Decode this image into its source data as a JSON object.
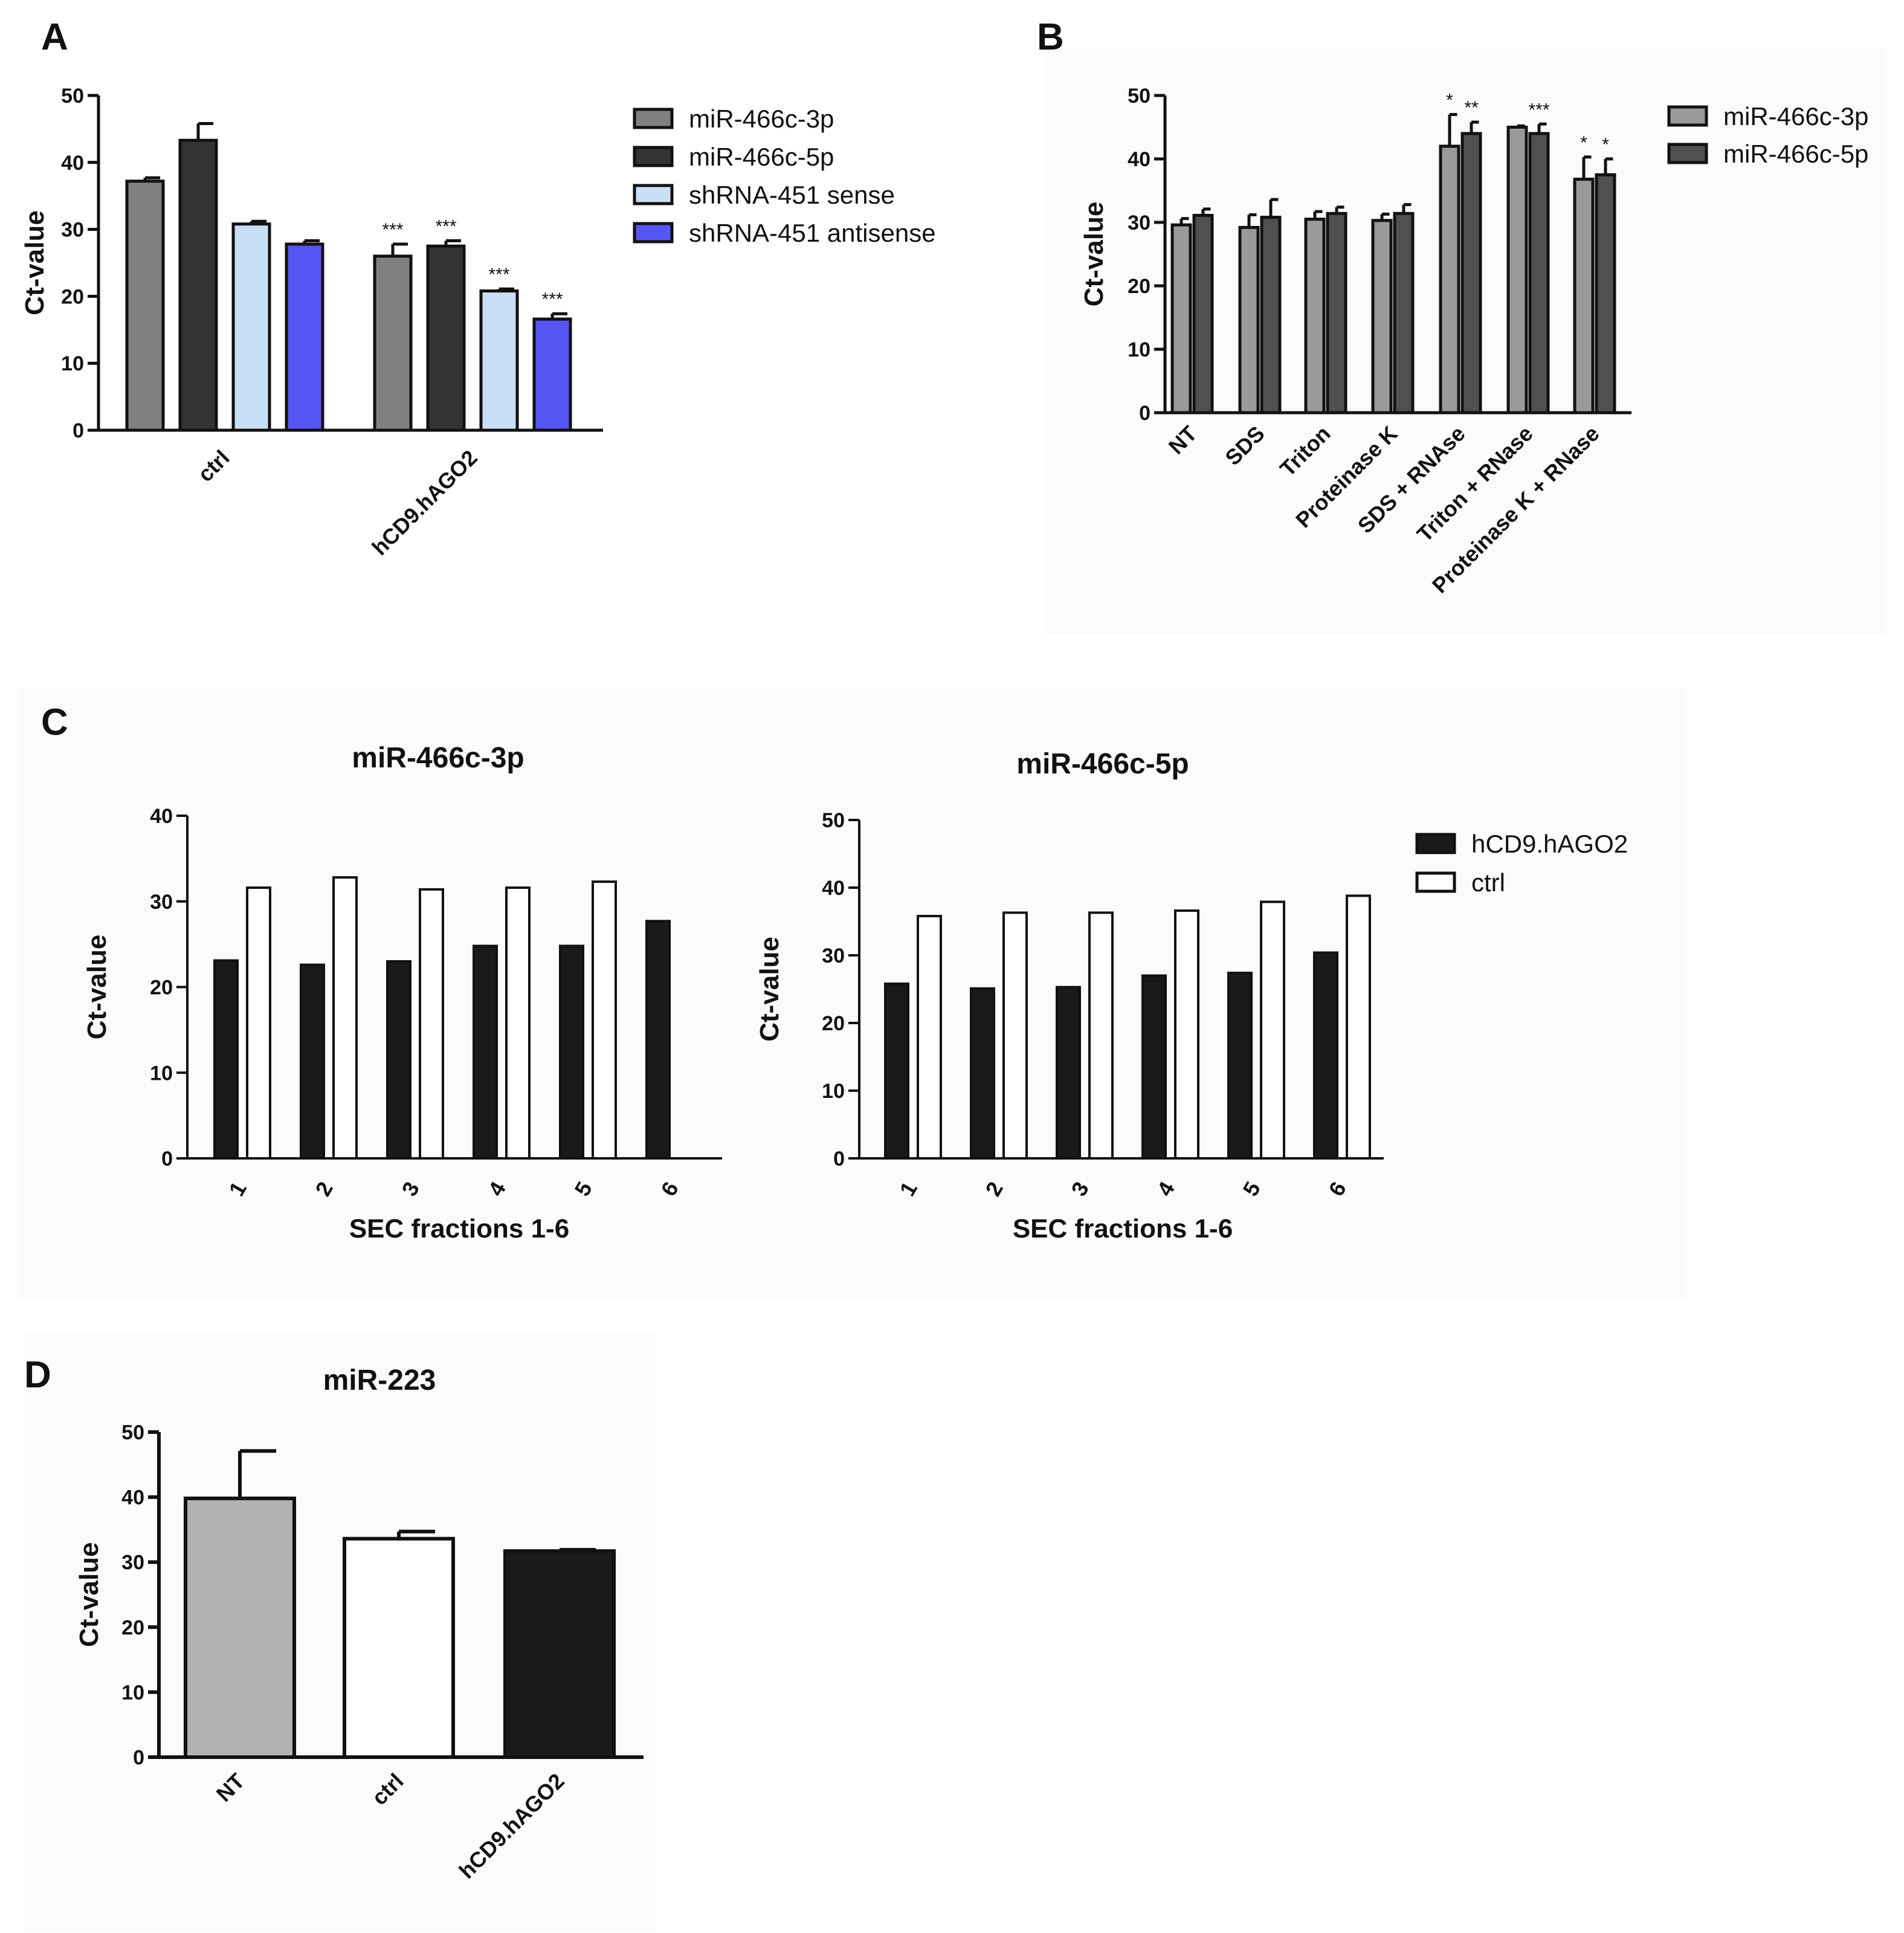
{
  "chart_data": [
    {
      "panel": "A",
      "type": "bar",
      "title": "",
      "xlabel": "",
      "ylabel": "Ct-value",
      "ylim": [
        0,
        50
      ],
      "yticks": [
        0,
        10,
        20,
        30,
        40,
        50
      ],
      "categories": [
        "ctrl",
        "hCD9.hAGO2"
      ],
      "series": [
        {
          "name": "miR-466c-3p",
          "color": "#808080",
          "values": [
            37.2,
            26.0
          ],
          "errors": [
            0.5,
            1.8
          ],
          "stars": [
            "",
            "***"
          ]
        },
        {
          "name": "miR-466c-5p",
          "color": "#333333",
          "values": [
            43.3,
            27.5
          ],
          "errors": [
            2.5,
            0.8
          ],
          "stars": [
            "",
            "***"
          ]
        },
        {
          "name": "shRNA-451 sense",
          "color": "#c9dff5",
          "values": [
            30.8,
            20.8
          ],
          "errors": [
            0.4,
            0.3
          ],
          "stars": [
            "",
            "***"
          ]
        },
        {
          "name": "shRNA-451 antisense",
          "color": "#5656f5",
          "values": [
            27.8,
            16.6
          ],
          "errors": [
            0.5,
            0.8
          ],
          "stars": [
            "",
            "***"
          ]
        }
      ]
    },
    {
      "panel": "B",
      "type": "bar",
      "title": "",
      "xlabel": "",
      "ylabel": "Ct-value",
      "ylim": [
        0,
        50
      ],
      "yticks": [
        0,
        10,
        20,
        30,
        40,
        50
      ],
      "categories": [
        "NT",
        "SDS",
        "Triton",
        "Proteinase K",
        "SDS + RNAse",
        "Triton + RNase",
        "Proteinase K + RNase"
      ],
      "series": [
        {
          "name": "miR-466c-3p",
          "color": "#9a9a9a",
          "values": [
            29.6,
            29.2,
            30.5,
            30.3,
            42.0,
            45.0,
            36.8
          ],
          "errors": [
            1.0,
            2.0,
            1.2,
            1.0,
            5.0,
            0.2,
            3.5
          ],
          "stars": [
            "",
            "",
            "",
            "",
            "*",
            "",
            "*"
          ]
        },
        {
          "name": "miR-466c-5p",
          "color": "#505050",
          "values": [
            31.1,
            30.8,
            31.4,
            31.4,
            44.0,
            44.0,
            37.5
          ],
          "errors": [
            1.0,
            2.8,
            1.0,
            1.4,
            1.8,
            1.5,
            2.5
          ],
          "stars": [
            "",
            "",
            "",
            "",
            "**",
            "***",
            "*"
          ]
        }
      ]
    },
    {
      "panel": "C",
      "type": "bar",
      "title": "miR-466c-3p",
      "xlabel": "SEC fractions 1-6",
      "ylabel": "Ct-value",
      "ylim": [
        0,
        40
      ],
      "yticks": [
        0,
        10,
        20,
        30,
        40
      ],
      "categories": [
        "1",
        "2",
        "3",
        "4",
        "5",
        "6"
      ],
      "series": [
        {
          "name": "hCD9.hAGO2",
          "color": "#1a1a1a",
          "values": [
            23.1,
            22.6,
            23.0,
            24.8,
            24.8,
            27.7
          ]
        },
        {
          "name": "ctrl",
          "color": "#ffffff",
          "values": [
            31.6,
            32.8,
            31.4,
            31.6,
            32.3,
            null
          ]
        }
      ]
    },
    {
      "panel": "C",
      "type": "bar",
      "title": "miR-466c-5p",
      "xlabel": "SEC fractions 1-6",
      "ylabel": "Ct-value",
      "ylim": [
        0,
        50
      ],
      "yticks": [
        0,
        10,
        20,
        30,
        40,
        50
      ],
      "categories": [
        "1",
        "2",
        "3",
        "4",
        "5",
        "6"
      ],
      "series": [
        {
          "name": "hCD9.hAGO2",
          "color": "#1a1a1a",
          "values": [
            25.8,
            25.1,
            25.3,
            27.0,
            27.4,
            30.4
          ]
        },
        {
          "name": "ctrl",
          "color": "#ffffff",
          "values": [
            35.8,
            36.3,
            36.3,
            36.6,
            37.9,
            38.8
          ]
        }
      ]
    },
    {
      "panel": "D",
      "type": "bar",
      "title": "miR-223",
      "xlabel": "",
      "ylabel": "Ct-value",
      "ylim": [
        0,
        50
      ],
      "yticks": [
        0,
        10,
        20,
        30,
        40,
        50
      ],
      "categories": [
        "NT",
        "ctrl",
        "hCD9.hAGO2"
      ],
      "series": [
        {
          "name": "miR-223",
          "colors": [
            "#b2b2b2",
            "#ffffff",
            "#1a1a1a"
          ],
          "values": [
            39.8,
            33.6,
            31.7
          ],
          "errors": [
            7.3,
            1.1,
            0.2
          ]
        }
      ]
    }
  ],
  "panels": {
    "A": {
      "label": "A"
    },
    "B": {
      "label": "B"
    },
    "C": {
      "label": "C"
    },
    "D": {
      "label": "D"
    }
  },
  "legends": {
    "A": [
      "miR-466c-3p",
      "miR-466c-5p",
      "shRNA-451 sense",
      "shRNA-451 antisense"
    ],
    "B": [
      "miR-466c-3p",
      "miR-466c-5p"
    ],
    "C": [
      "hCD9.hAGO2",
      "ctrl"
    ]
  }
}
